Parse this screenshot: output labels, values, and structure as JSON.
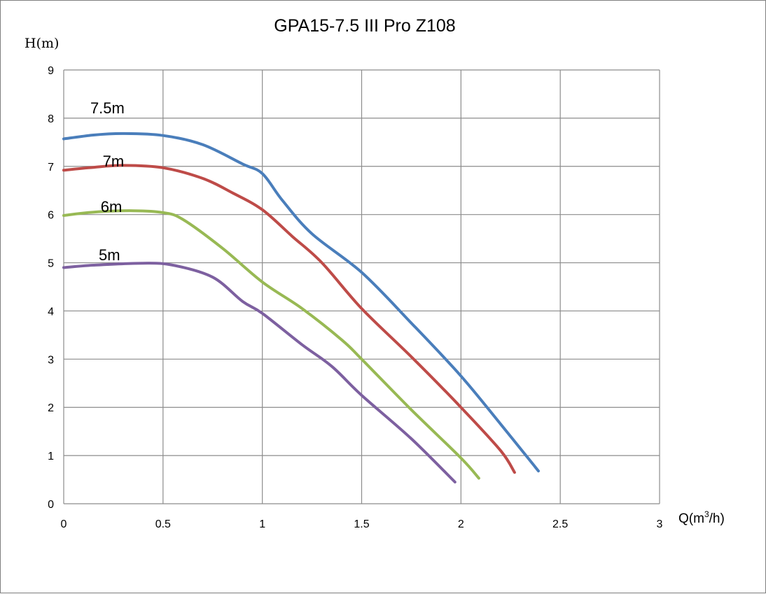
{
  "chart_data": {
    "type": "line",
    "title": "GPA15-7.5 III Pro Z108",
    "ylabel": "H(m)",
    "xlabel": {
      "main": "Q(m",
      "sup": "3",
      "tail": "/h)"
    },
    "xlim": [
      0,
      3
    ],
    "ylim": [
      0,
      9
    ],
    "x_ticks": [
      0,
      0.5,
      1,
      1.5,
      2,
      2.5,
      3
    ],
    "x_tick_labels": [
      "0",
      "0.5",
      "1",
      "1.5",
      "2",
      "2.5",
      "3"
    ],
    "y_ticks": [
      0,
      1,
      2,
      3,
      4,
      5,
      6,
      7,
      8,
      9
    ],
    "y_tick_labels": [
      "0",
      "1",
      "2",
      "3",
      "4",
      "5",
      "6",
      "7",
      "8",
      "9"
    ],
    "grid": true,
    "series": [
      {
        "label": "7.5m",
        "color": "#4a7ebb",
        "label_pos": [
          0.22,
          8.1
        ],
        "points": [
          [
            0,
            7.57
          ],
          [
            0.15,
            7.65
          ],
          [
            0.3,
            7.68
          ],
          [
            0.5,
            7.64
          ],
          [
            0.7,
            7.45
          ],
          [
            0.9,
            7.05
          ],
          [
            1.0,
            6.85
          ],
          [
            1.1,
            6.3
          ],
          [
            1.25,
            5.6
          ],
          [
            1.5,
            4.8
          ],
          [
            1.75,
            3.75
          ],
          [
            2.0,
            2.65
          ],
          [
            2.2,
            1.65
          ],
          [
            2.39,
            0.68
          ]
        ]
      },
      {
        "label": "7m",
        "color": "#be4b48",
        "label_pos": [
          0.25,
          7.0
        ],
        "points": [
          [
            0,
            6.92
          ],
          [
            0.15,
            6.98
          ],
          [
            0.3,
            7.02
          ],
          [
            0.5,
            6.97
          ],
          [
            0.7,
            6.75
          ],
          [
            0.85,
            6.45
          ],
          [
            1.0,
            6.1
          ],
          [
            1.15,
            5.55
          ],
          [
            1.3,
            5.0
          ],
          [
            1.5,
            4.05
          ],
          [
            1.75,
            3.05
          ],
          [
            2.0,
            2.0
          ],
          [
            2.2,
            1.1
          ],
          [
            2.27,
            0.65
          ]
        ]
      },
      {
        "label": "6m",
        "color": "#98b954",
        "label_pos": [
          0.24,
          6.05
        ],
        "points": [
          [
            0,
            5.98
          ],
          [
            0.15,
            6.05
          ],
          [
            0.35,
            6.08
          ],
          [
            0.5,
            6.04
          ],
          [
            0.6,
            5.9
          ],
          [
            0.8,
            5.3
          ],
          [
            1.0,
            4.6
          ],
          [
            1.2,
            4.05
          ],
          [
            1.4,
            3.4
          ],
          [
            1.5,
            3.0
          ],
          [
            1.75,
            1.95
          ],
          [
            2.0,
            0.95
          ],
          [
            2.09,
            0.53
          ]
        ]
      },
      {
        "label": "5m",
        "color": "#7d60a0",
        "label_pos": [
          0.23,
          5.05
        ],
        "points": [
          [
            0,
            4.9
          ],
          [
            0.15,
            4.95
          ],
          [
            0.4,
            4.99
          ],
          [
            0.55,
            4.95
          ],
          [
            0.75,
            4.7
          ],
          [
            0.9,
            4.2
          ],
          [
            1.0,
            3.95
          ],
          [
            1.2,
            3.3
          ],
          [
            1.35,
            2.85
          ],
          [
            1.5,
            2.25
          ],
          [
            1.75,
            1.35
          ],
          [
            1.97,
            0.45
          ]
        ]
      }
    ]
  }
}
